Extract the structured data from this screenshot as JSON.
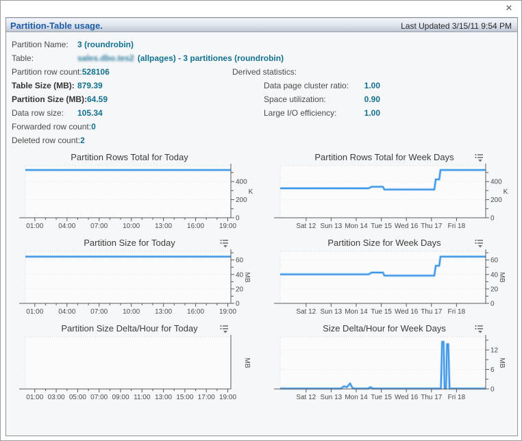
{
  "window": {
    "close_glyph": "✕"
  },
  "header": {
    "title": "Partition-Table usage.",
    "last_updated": "Last Updated 3/15/11 9:54 PM"
  },
  "stats": {
    "partition_name": {
      "label": "Partition Name:",
      "value": "3 (roundrobin)"
    },
    "table": {
      "label": "Table:",
      "redacted_name": "sales.dbo.tes2",
      "suffix": "(allpages) - 3 partitiones (roundrobin)"
    },
    "left_rows": [
      {
        "label": "Partition row count:",
        "value": "528106",
        "bold": false
      },
      {
        "label": "Table Size (MB):",
        "value": "879.39",
        "bold": true
      },
      {
        "label": "Partition Size (MB):",
        "value": "64.59",
        "bold": true
      },
      {
        "label": "Data row size:",
        "value": "105.34",
        "bold": false
      },
      {
        "label": "Forwarded row count:",
        "value": "0",
        "bold": false
      },
      {
        "label": "Deleted row count:",
        "value": "2",
        "bold": false
      }
    ],
    "derived": {
      "heading": "Derived statistics:",
      "rows": [
        {
          "label": "Data page cluster ratio:",
          "value": "1.00"
        },
        {
          "label": "Space utilization:",
          "value": "0.90"
        },
        {
          "label": "Large I/O efficiency:",
          "value": "1.00"
        }
      ]
    }
  },
  "colors": {
    "line_blue": "#3e95e5",
    "line_halo": "#b9dcf7",
    "value_teal": "#12708f",
    "header_blue": "#1d5da6",
    "axis_gray": "#55585c",
    "plot_bg": "#fbfbfc"
  },
  "chart_data": [
    {
      "type": "line",
      "title": "Partition Rows Total for Today",
      "unit": "K",
      "unit_rotated": false,
      "menu_icon": false,
      "legend": "none",
      "grid": true,
      "y_ticks": [
        0,
        200,
        400
      ],
      "y_minor": [
        100,
        300,
        500
      ],
      "y_max": 575,
      "y_labels": true,
      "x_ticks": [
        "01:00",
        "04:00",
        "07:00",
        "10:00",
        "13:00",
        "16:00",
        "19:00"
      ],
      "x_first_frac": 0.046,
      "x_last_frac": 0.985,
      "x_minor_per_interval": 2,
      "points": [
        [
          0,
          528
        ],
        [
          1,
          528
        ]
      ]
    },
    {
      "type": "line",
      "title": "Partition Rows Total for Week Days",
      "unit": "K",
      "unit_rotated": false,
      "menu_icon": true,
      "legend": "none",
      "grid": true,
      "y_ticks": [
        0,
        200,
        400
      ],
      "y_minor": [
        100,
        300,
        500
      ],
      "y_max": 575,
      "y_labels": true,
      "x_ticks": [
        "Sat 12",
        "Sun 13",
        "Mon 14",
        "Tue 15",
        "Wed 16",
        "Thu 17",
        "Fri 18"
      ],
      "x_first_frac": 0.126,
      "x_last_frac": 0.858,
      "x_minor_per_interval": 0,
      "points": [
        [
          0,
          325
        ],
        [
          0.43,
          325
        ],
        [
          0.445,
          342
        ],
        [
          0.5,
          342
        ],
        [
          0.507,
          312
        ],
        [
          0.75,
          312
        ],
        [
          0.757,
          424
        ],
        [
          0.774,
          424
        ],
        [
          0.78,
          528
        ],
        [
          1,
          528
        ]
      ]
    },
    {
      "type": "line",
      "title": "Partition Size for Today",
      "unit": "MB",
      "unit_rotated": true,
      "menu_icon": true,
      "legend": "none",
      "grid": true,
      "y_ticks": [
        0,
        20,
        40,
        60
      ],
      "y_minor": [
        10,
        30,
        50,
        70
      ],
      "y_max": 72,
      "y_labels": true,
      "x_ticks": [
        "01:00",
        "04:00",
        "07:00",
        "10:00",
        "13:00",
        "16:00",
        "19:00"
      ],
      "x_first_frac": 0.046,
      "x_last_frac": 0.985,
      "x_minor_per_interval": 2,
      "points": [
        [
          0,
          64.6
        ],
        [
          1,
          64.6
        ]
      ]
    },
    {
      "type": "line",
      "title": "Partition Size for Week Days",
      "unit": "MB",
      "unit_rotated": true,
      "menu_icon": true,
      "legend": "none",
      "grid": true,
      "y_ticks": [
        0,
        20,
        40,
        60
      ],
      "y_minor": [
        10,
        30,
        50,
        70
      ],
      "y_max": 72,
      "y_labels": true,
      "x_ticks": [
        "Sat 12",
        "Sun 13",
        "Mon 14",
        "Tue 15",
        "Wed 16",
        "Thu 17",
        "Fri 18"
      ],
      "x_first_frac": 0.126,
      "x_last_frac": 0.858,
      "x_minor_per_interval": 0,
      "points": [
        [
          0,
          40.2
        ],
        [
          0.43,
          40.2
        ],
        [
          0.445,
          42.6
        ],
        [
          0.5,
          42.6
        ],
        [
          0.507,
          38.4
        ],
        [
          0.75,
          38.4
        ],
        [
          0.757,
          52
        ],
        [
          0.774,
          52
        ],
        [
          0.78,
          64.6
        ],
        [
          1,
          64.6
        ]
      ]
    },
    {
      "type": "line",
      "title": "Partition Size Delta/Hour for Today",
      "unit": "MB",
      "unit_rotated": true,
      "menu_icon": true,
      "legend": "none",
      "grid": false,
      "y_ticks": [],
      "y_minor": [],
      "y_max": 16,
      "y_labels": false,
      "x_ticks": [
        "01:00",
        "03:00",
        "05:00",
        "07:00",
        "09:00",
        "11:00",
        "13:00",
        "15:00",
        "17:00",
        "19:00"
      ],
      "x_first_frac": 0.046,
      "x_last_frac": 0.985,
      "x_minor_per_interval": 1,
      "points": []
    },
    {
      "type": "line",
      "title": "Size Delta/Hour for Week Days",
      "unit": "MB",
      "unit_rotated": true,
      "menu_icon": true,
      "legend": "none",
      "grid": true,
      "y_ticks": [
        0,
        6,
        12
      ],
      "y_minor": [
        3,
        9,
        15
      ],
      "y_max": 16,
      "y_labels": true,
      "x_ticks": [
        "Sat 12",
        "Sun 13",
        "Mon 14",
        "Tue 15",
        "Wed 16",
        "Thu 17",
        "Fri 18"
      ],
      "x_first_frac": 0.126,
      "x_last_frac": 0.858,
      "x_minor_per_interval": 0,
      "points": [
        [
          0,
          0.12
        ],
        [
          0.295,
          0.12
        ],
        [
          0.31,
          0.8
        ],
        [
          0.325,
          0.55
        ],
        [
          0.34,
          1.7
        ],
        [
          0.352,
          0.3
        ],
        [
          0.362,
          0.12
        ],
        [
          0.425,
          0.12
        ],
        [
          0.44,
          0.55
        ],
        [
          0.452,
          0.12
        ],
        [
          0.782,
          0.12
        ],
        [
          0.788,
          14.5
        ],
        [
          0.795,
          14.5
        ],
        [
          0.8,
          0.12
        ],
        [
          0.807,
          0.12
        ],
        [
          0.812,
          13.8
        ],
        [
          0.818,
          13.8
        ],
        [
          0.824,
          0.12
        ],
        [
          1,
          0.12
        ]
      ]
    }
  ]
}
